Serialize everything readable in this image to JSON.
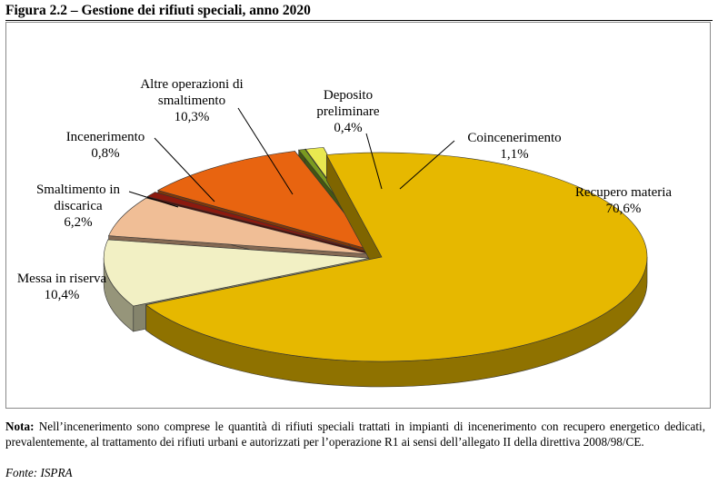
{
  "figure": {
    "title": "Figura 2.2 – Gestione dei rifiuti speciali, anno 2020"
  },
  "chart_data": {
    "type": "pie",
    "title": "",
    "slices": [
      {
        "name": "Recupero materia",
        "value": 70.6,
        "label": "70,6%",
        "color": "#E6B800"
      },
      {
        "name": "Messa in riserva",
        "value": 10.4,
        "label": "10,4%",
        "color": "#F2F0C4"
      },
      {
        "name": "Smaltimento in discarica",
        "value": 6.2,
        "label": "6,2%",
        "color": "#F0BE96"
      },
      {
        "name": "Incenerimento",
        "value": 0.8,
        "label": "0,8%",
        "color": "#8B1A0F"
      },
      {
        "name": "Altre operazioni di smaltimento",
        "value": 10.3,
        "label": "10,3%",
        "color": "#E86410"
      },
      {
        "name": "Deposito preliminare",
        "value": 0.4,
        "label": "0,4%",
        "color": "#7A9A20"
      },
      {
        "name": "Coincenerimento",
        "value": 1.1,
        "label": "1,1%",
        "color": "#E8E850"
      }
    ],
    "labels": [
      {
        "lines": [
          "Recupero materia",
          "70,6%"
        ]
      },
      {
        "lines": [
          "Messa in riserva",
          "10,4%"
        ]
      },
      {
        "lines": [
          "Smaltimento in",
          "discarica",
          "6,2%"
        ]
      },
      {
        "lines": [
          "Incenerimento",
          "0,8%"
        ]
      },
      {
        "lines": [
          "Altre operazioni di",
          "smaltimento",
          "10,3%"
        ]
      },
      {
        "lines": [
          "Deposito",
          "preliminare",
          "0,4%"
        ]
      },
      {
        "lines": [
          "Coincenerimento",
          "1,1%"
        ]
      }
    ],
    "legend": "none",
    "style": "3d-exploded-pie"
  },
  "note": {
    "label": "Nota:",
    "text": " Nell’incenerimento sono comprese le quantità di rifiuti speciali trattati in impianti di incenerimento con recupero energetico dedicati, prevalentemente, al trattamento dei rifiuti urbani e autorizzati per l’operazione R1 ai sensi dell’allegato II della direttiva 2008/98/CE."
  },
  "source": "Fonte: ISPRA"
}
